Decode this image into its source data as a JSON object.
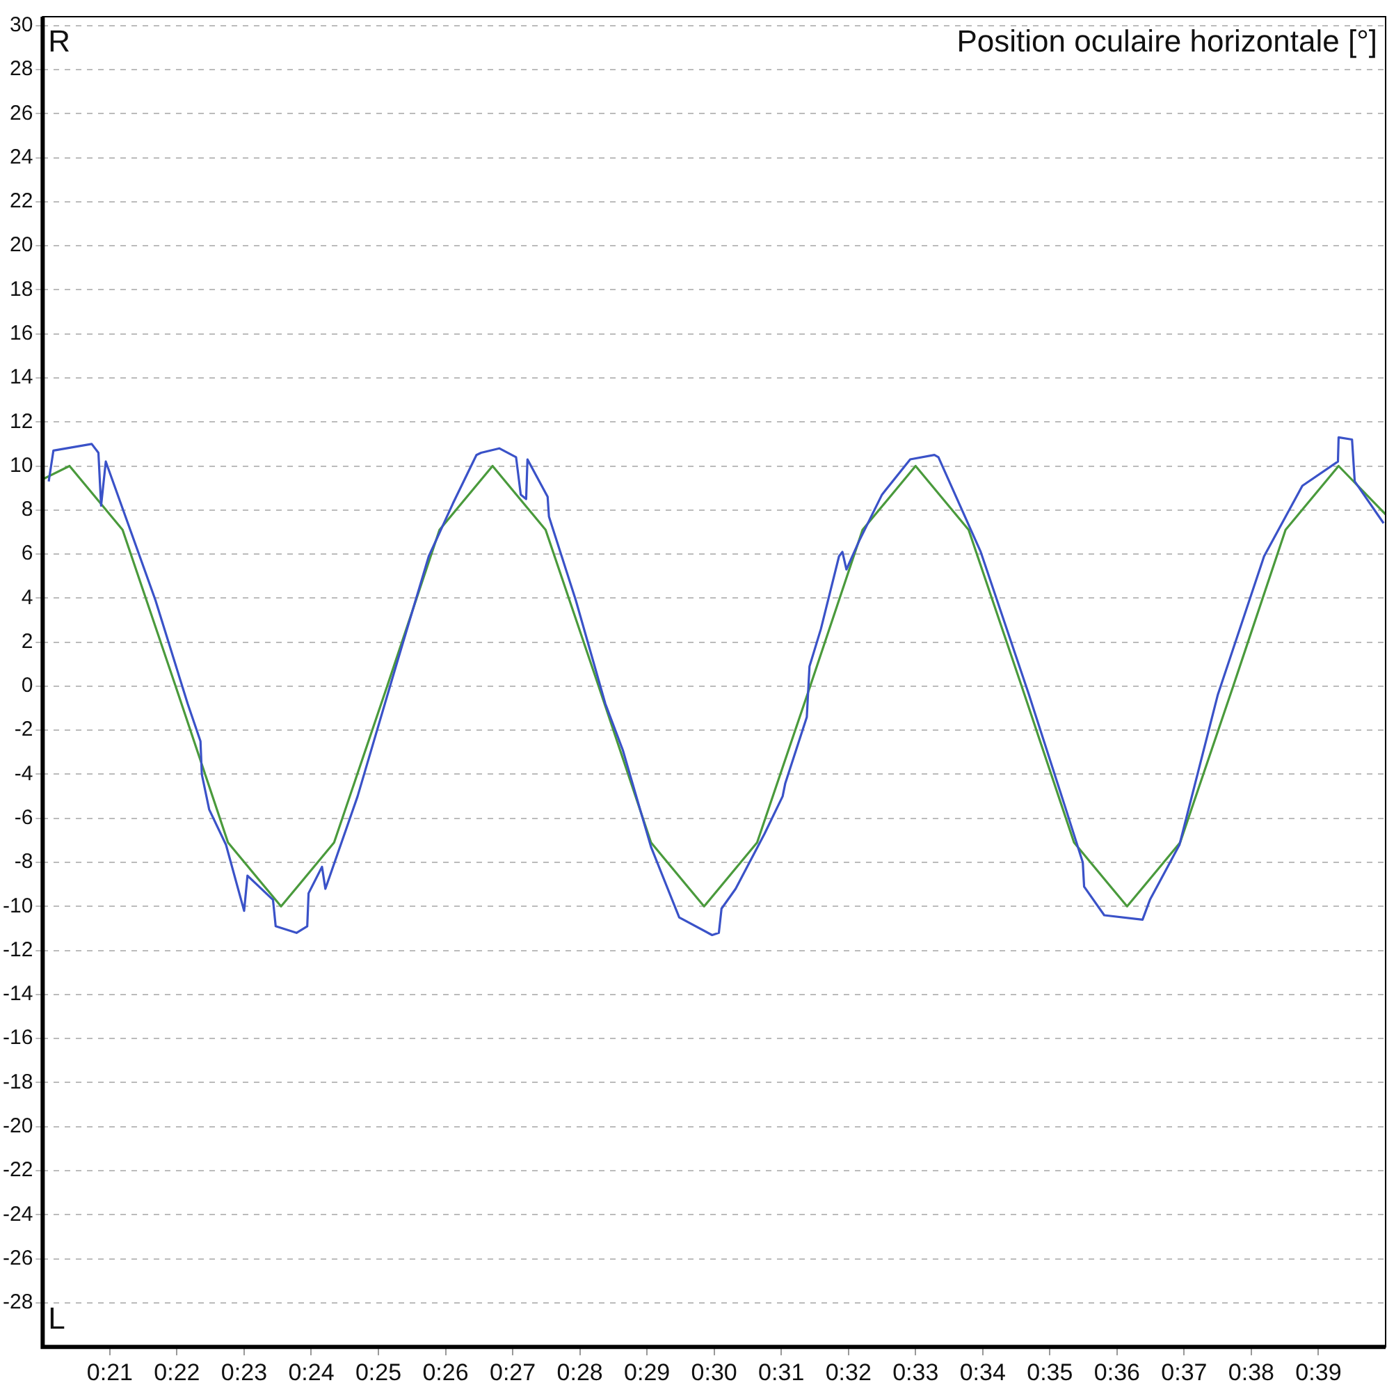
{
  "chart_data": {
    "type": "line",
    "title": "Position oculaire horizontale [°]",
    "annotations": [
      "R",
      "L"
    ],
    "xlim": [
      20,
      40
    ],
    "xticks": [
      {
        "value": 21,
        "label": "0:21"
      },
      {
        "value": 22,
        "label": "0:22"
      },
      {
        "value": 23,
        "label": "0:23"
      },
      {
        "value": 24,
        "label": "0:24"
      },
      {
        "value": 25,
        "label": "0:25"
      },
      {
        "value": 26,
        "label": "0:26"
      },
      {
        "value": 27,
        "label": "0:27"
      },
      {
        "value": 28,
        "label": "0:28"
      },
      {
        "value": 29,
        "label": "0:29"
      },
      {
        "value": 30,
        "label": "0:30"
      },
      {
        "value": 31,
        "label": "0:31"
      },
      {
        "value": 32,
        "label": "0:32"
      },
      {
        "value": 33,
        "label": "0:33"
      },
      {
        "value": 34,
        "label": "0:34"
      },
      {
        "value": 35,
        "label": "0:35"
      },
      {
        "value": 36,
        "label": "0:36"
      },
      {
        "value": 37,
        "label": "0:37"
      },
      {
        "value": 38,
        "label": "0:38"
      },
      {
        "value": 39,
        "label": "0:39"
      }
    ],
    "ylim": [
      -30,
      30.4
    ],
    "yticks": [
      -28,
      -26,
      -24,
      -22,
      -20,
      -18,
      -16,
      -14,
      -12,
      -10,
      -8,
      -6,
      -4,
      -2,
      0,
      2,
      4,
      6,
      8,
      10,
      12,
      14,
      16,
      18,
      20,
      22,
      24,
      26,
      28,
      30
    ],
    "grid": "y",
    "series": [
      {
        "color": "#3a52c8",
        "x": [
          20.09,
          20.16,
          20.73,
          20.83,
          20.87,
          20.94,
          21.68,
          22.16,
          22.35,
          22.37,
          22.48,
          22.73,
          23.0,
          23.05,
          23.43,
          23.47,
          23.78,
          23.94,
          23.96,
          24.16,
          24.21,
          24.69,
          25.26,
          25.75,
          26.11,
          26.46,
          26.53,
          26.8,
          27.05,
          27.12,
          27.2,
          27.22,
          27.52,
          27.54,
          27.94,
          28.38,
          28.64,
          29.06,
          29.48,
          29.97,
          30.07,
          30.11,
          30.32,
          30.75,
          31.02,
          31.06,
          31.38,
          31.42,
          31.59,
          31.86,
          31.91,
          31.97,
          32.16,
          32.5,
          32.92,
          33.28,
          33.34,
          33.97,
          34.69,
          35.24,
          35.49,
          35.51,
          35.81,
          36.38,
          36.49,
          36.93,
          37.5,
          38.19,
          38.76,
          39.29,
          39.3,
          39.5,
          39.54,
          39.97
        ],
        "values": [
          9.3,
          10.7,
          11.0,
          10.6,
          8.2,
          10.2,
          3.9,
          -0.8,
          -2.5,
          -4.0,
          -5.6,
          -7.2,
          -10.2,
          -8.6,
          -9.7,
          -10.9,
          -11.2,
          -10.9,
          -9.4,
          -8.2,
          -9.2,
          -5.0,
          0.9,
          5.9,
          8.3,
          10.5,
          10.6,
          10.8,
          10.4,
          8.7,
          8.5,
          10.3,
          8.6,
          7.7,
          3.9,
          -0.8,
          -2.9,
          -7.3,
          -10.5,
          -11.3,
          -11.2,
          -10.1,
          -9.2,
          -6.7,
          -5.0,
          -4.4,
          -1.4,
          0.9,
          2.6,
          5.9,
          6.1,
          5.3,
          6.6,
          8.7,
          10.3,
          10.5,
          10.4,
          6.1,
          -0.4,
          -5.6,
          -8.0,
          -9.1,
          -10.4,
          -10.6,
          -9.7,
          -7.2,
          -0.4,
          5.9,
          9.1,
          10.2,
          11.3,
          11.2,
          9.3,
          7.4
        ]
      },
      {
        "color": "#4a9a3c",
        "x": [
          20.0,
          20.4,
          21.19,
          21.98,
          22.76,
          23.55,
          24.34,
          25.13,
          25.91,
          26.7,
          27.49,
          28.28,
          29.06,
          29.85,
          30.64,
          31.43,
          32.21,
          33.0,
          33.79,
          34.58,
          35.36,
          36.15,
          36.94,
          37.73,
          38.51,
          39.3,
          40.0
        ],
        "values": [
          9.4,
          10,
          7.1,
          0,
          -7.1,
          -10,
          -7.1,
          0,
          7.1,
          10,
          7.1,
          0,
          -7.1,
          -10,
          -7.1,
          0,
          7.1,
          10,
          7.1,
          0,
          -7.1,
          -10,
          -7.1,
          0,
          7.1,
          10,
          7.8
        ]
      }
    ]
  }
}
